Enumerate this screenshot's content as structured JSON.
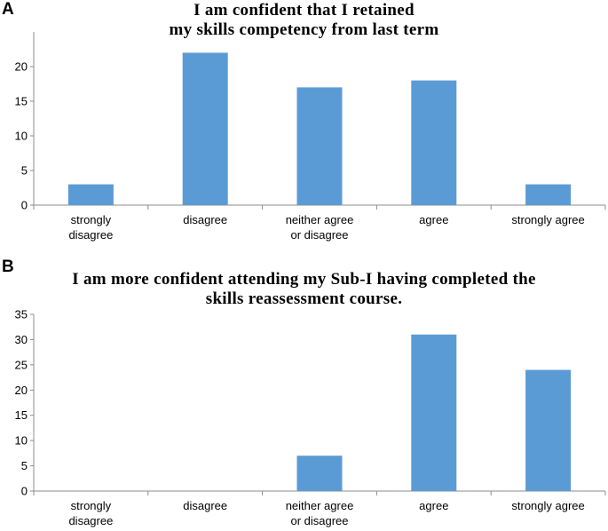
{
  "chart_data": [
    {
      "panel": "A",
      "type": "bar",
      "title_lines": [
        "I am confident that I retained",
        "my skills competency from last term"
      ],
      "categories": [
        [
          "strongly",
          "disagree"
        ],
        [
          "disagree"
        ],
        [
          "neither agree",
          "or disagree"
        ],
        [
          "agree"
        ],
        [
          "strongly agree"
        ]
      ],
      "values": [
        3,
        22,
        17,
        18,
        3
      ],
      "ylim": [
        0,
        25
      ],
      "yticks": [
        0,
        5,
        10,
        15,
        20
      ],
      "ytick_labels": [
        "0",
        "5",
        "10",
        "15",
        "20"
      ],
      "grid": false,
      "bar_color": "#5b9bd5"
    },
    {
      "panel": "B",
      "type": "bar",
      "title_lines": [
        "I am more confident attending my Sub-I having completed the",
        "skills reassessment course."
      ],
      "categories": [
        [
          "strongly",
          "disagree"
        ],
        [
          "disagree"
        ],
        [
          "neither agree",
          "or disagree"
        ],
        [
          "agree"
        ],
        [
          "strongly agree"
        ]
      ],
      "values": [
        0,
        0,
        7,
        31,
        24
      ],
      "ylim": [
        0,
        35
      ],
      "yticks": [
        0,
        5,
        10,
        15,
        20,
        25,
        30,
        35
      ],
      "ytick_labels": [
        "0",
        "5",
        "10",
        "15",
        "20",
        "25",
        "30",
        "35"
      ],
      "grid": false,
      "bar_color": "#5b9bd5"
    }
  ]
}
